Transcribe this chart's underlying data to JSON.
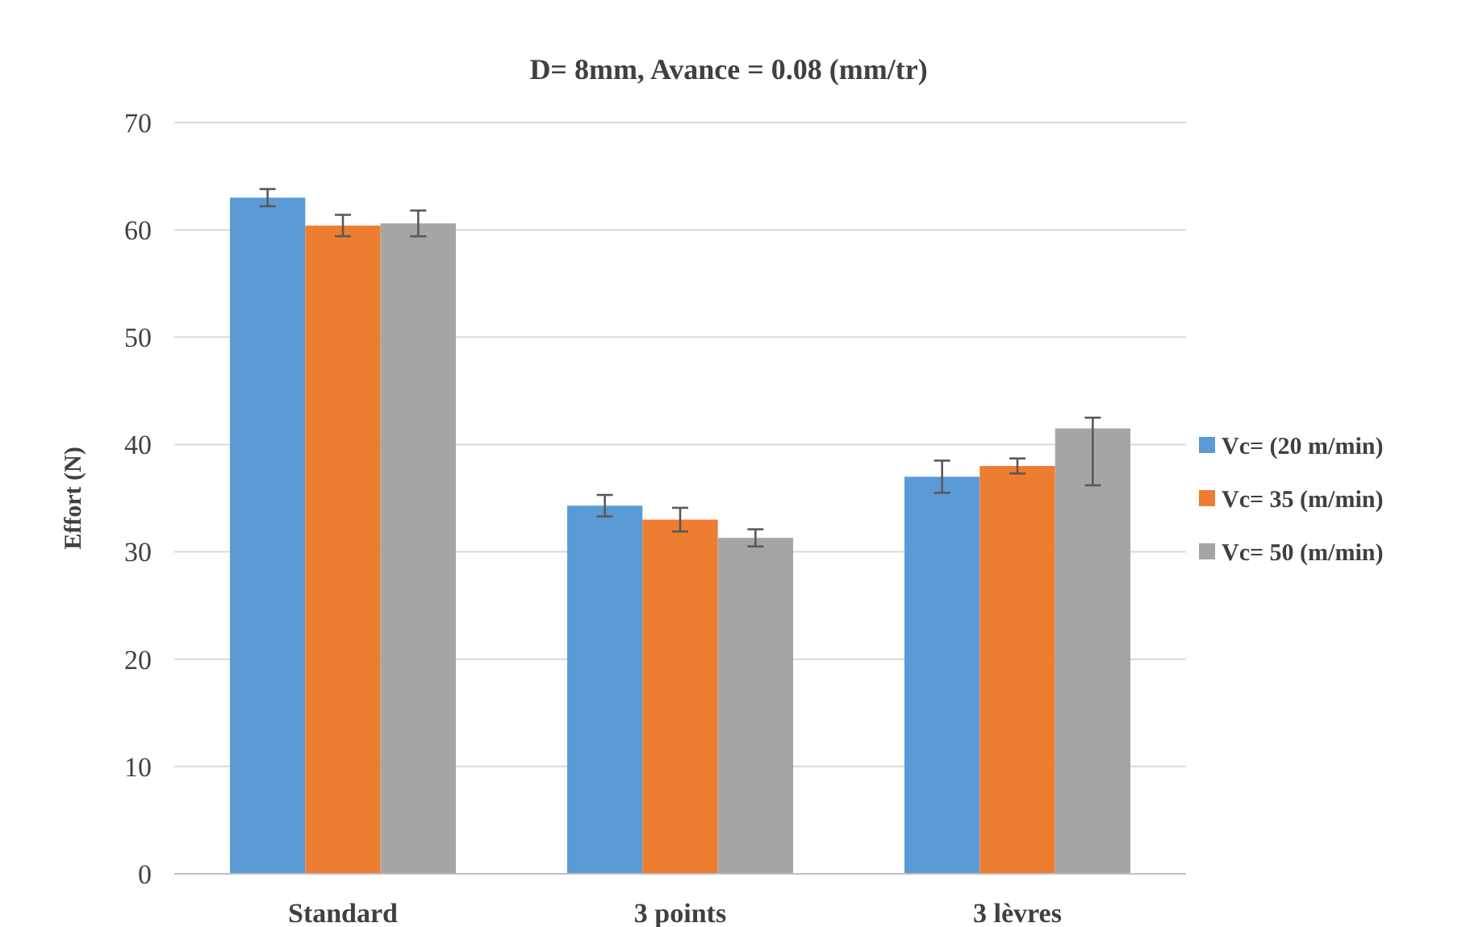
{
  "chart_data": {
    "type": "bar",
    "title": "D= 8mm, Avance = 0.08 (mm/tr)",
    "ylabel": "Effort  (N)",
    "categories": [
      "Standard",
      "3 points",
      "3 lèvres"
    ],
    "series": [
      {
        "name": "Vc= (20 m/min)",
        "color": "#5b9bd5",
        "values": [
          63.0,
          34.3,
          37.0
        ],
        "errors": [
          0.8,
          1.0,
          1.5
        ]
      },
      {
        "name": "Vc= 35 (m/min)",
        "color": "#ed7d31",
        "values": [
          60.4,
          33.0,
          38.0
        ],
        "errors": [
          1.0,
          1.1,
          0.7
        ]
      },
      {
        "name": "Vc= 50 (m/min)",
        "color": "#a5a5a5",
        "values": [
          60.6,
          31.3,
          41.5
        ],
        "errors": [
          1.2,
          0.8,
          [
            36.2,
            42.5
          ]
        ]
      }
    ],
    "ylim": [
      0,
      70
    ],
    "yticks": [
      0,
      10,
      20,
      30,
      40,
      50,
      60,
      70
    ],
    "grid": "y",
    "legend": "right"
  }
}
